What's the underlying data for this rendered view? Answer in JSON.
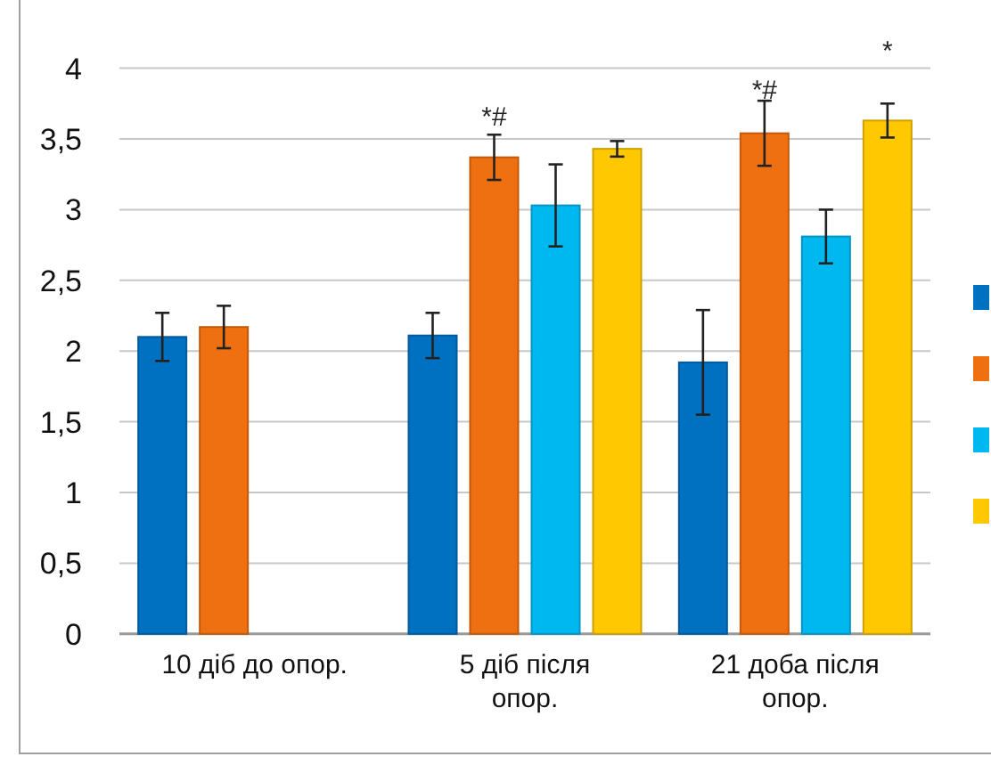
{
  "chart_data": {
    "type": "bar",
    "categories": [
      "10 діб до опор.",
      "5 діб після опор.",
      "21 доба після опор."
    ],
    "series": [
      {
        "color": "#0070c0",
        "values": [
          2.1,
          2.11,
          1.92
        ],
        "errors": [
          0.17,
          0.16,
          0.37
        ]
      },
      {
        "color": "#ef7010",
        "values": [
          2.17,
          3.37,
          3.54
        ],
        "errors": [
          0.15,
          0.16,
          0.23
        ]
      },
      {
        "color": "#00b8f0",
        "values": [
          null,
          3.03,
          2.81
        ],
        "errors": [
          null,
          0.29,
          0.19
        ]
      },
      {
        "color": "#ffc800",
        "values": [
          null,
          3.43,
          3.63
        ],
        "errors": [
          null,
          0.055,
          0.12
        ]
      }
    ],
    "ylim": [
      0,
      4
    ],
    "yticks": [
      0,
      {
        "value": 0.5,
        "label": "0,5"
      },
      1,
      {
        "value": 1.5,
        "label": "1,5"
      },
      2,
      {
        "value": 2.5,
        "label": "2,5"
      },
      3,
      {
        "value": 3.5,
        "label": "3,5"
      },
      4
    ],
    "grid": "y",
    "annotations": [
      "*#",
      "*#",
      "*"
    ]
  }
}
